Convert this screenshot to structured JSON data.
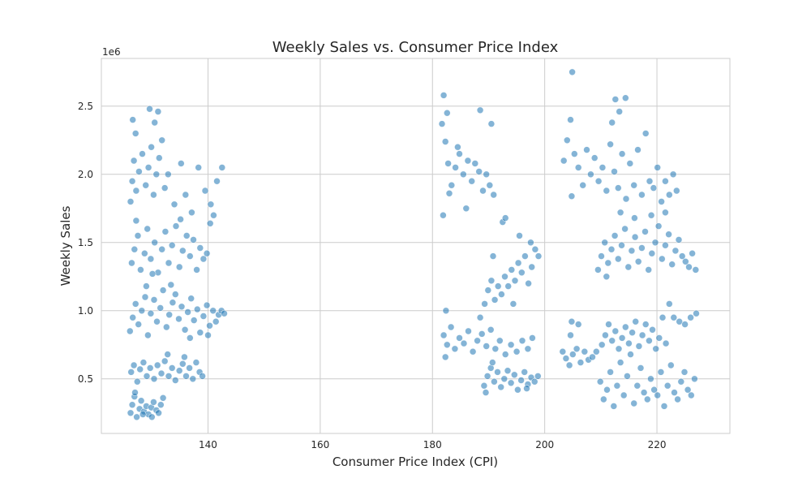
{
  "chart_data": {
    "type": "scatter",
    "title": "Weekly Sales vs. Consumer Price Index",
    "xlabel": "Consumer Price Index (CPI)",
    "ylabel": "Weekly Sales",
    "y_offset_label": "1e6",
    "xlim": [
      121,
      233
    ],
    "ylim": [
      0.1,
      2.85
    ],
    "x_ticks": [
      140,
      160,
      180,
      200,
      220
    ],
    "x_tick_labels": [
      "140",
      "160",
      "180",
      "200",
      "220"
    ],
    "y_ticks": [
      0.5,
      1.0,
      1.5,
      2.0,
      2.5
    ],
    "y_tick_labels": [
      "0.5",
      "1.0",
      "1.5",
      "2.0",
      "2.5"
    ],
    "y_scale_note": "values in millions (x 1e6)",
    "grid": true,
    "marker_color": "#1f77b4",
    "marker_alpha": 0.55,
    "marker_edge_color": "#ffffff",
    "cluster_summary": [
      {
        "x_range": [
          126,
          132
        ],
        "y_range": [
          0.22,
          0.42
        ]
      },
      {
        "x_range": [
          126,
          139
        ],
        "y_range": [
          0.45,
          0.7
        ]
      },
      {
        "x_range": [
          126,
          143
        ],
        "y_range": [
          0.78,
          1.2
        ]
      },
      {
        "x_range": [
          126,
          141
        ],
        "y_range": [
          1.25,
          1.7
        ]
      },
      {
        "x_range": [
          126,
          143
        ],
        "y_range": [
          1.7,
          2.3
        ]
      },
      {
        "x_range": [
          181.5,
          192
        ],
        "y_range": [
          1.7,
          2.62
        ]
      },
      {
        "x_range": [
          182,
          198
        ],
        "y_range": [
          0.65,
          0.95
        ]
      },
      {
        "x_range": [
          189,
          199
        ],
        "y_range": [
          0.4,
          0.62
        ]
      },
      {
        "x_range": [
          189,
          199
        ],
        "y_range": [
          1.0,
          1.5
        ]
      },
      {
        "x_range": [
          203,
          227
        ],
        "y_range": [
          0.28,
          1.05
        ]
      },
      {
        "x_range": [
          209,
          227
        ],
        "y_range": [
          1.22,
          1.75
        ]
      },
      {
        "x_range": [
          203,
          224
        ],
        "y_range": [
          1.75,
          2.55
        ]
      }
    ],
    "points": [
      [
        126.2,
        0.25
      ],
      [
        126.5,
        0.31
      ],
      [
        126.9,
        0.37
      ],
      [
        127.3,
        0.22
      ],
      [
        127.8,
        0.28
      ],
      [
        128.1,
        0.34
      ],
      [
        128.6,
        0.26
      ],
      [
        129.0,
        0.3
      ],
      [
        129.4,
        0.24
      ],
      [
        129.9,
        0.29
      ],
      [
        130.3,
        0.33
      ],
      [
        130.8,
        0.27
      ],
      [
        131.2,
        0.25
      ],
      [
        131.6,
        0.31
      ],
      [
        132.0,
        0.36
      ],
      [
        127.0,
        0.4
      ],
      [
        128.4,
        0.24
      ],
      [
        130.0,
        0.22
      ],
      [
        126.3,
        0.55
      ],
      [
        126.8,
        0.6
      ],
      [
        127.4,
        0.48
      ],
      [
        127.9,
        0.57
      ],
      [
        128.5,
        0.62
      ],
      [
        129.1,
        0.52
      ],
      [
        129.7,
        0.58
      ],
      [
        130.4,
        0.5
      ],
      [
        131.0,
        0.6
      ],
      [
        131.7,
        0.54
      ],
      [
        132.3,
        0.63
      ],
      [
        133.0,
        0.52
      ],
      [
        133.6,
        0.58
      ],
      [
        134.2,
        0.49
      ],
      [
        134.9,
        0.56
      ],
      [
        135.5,
        0.61
      ],
      [
        136.1,
        0.52
      ],
      [
        136.7,
        0.58
      ],
      [
        137.3,
        0.5
      ],
      [
        137.9,
        0.62
      ],
      [
        138.5,
        0.55
      ],
      [
        139.0,
        0.52
      ],
      [
        132.8,
        0.68
      ],
      [
        135.8,
        0.66
      ],
      [
        126.1,
        0.85
      ],
      [
        126.6,
        0.95
      ],
      [
        127.1,
        1.05
      ],
      [
        127.6,
        0.9
      ],
      [
        128.2,
        1.0
      ],
      [
        128.8,
        1.1
      ],
      [
        129.3,
        0.82
      ],
      [
        129.8,
        0.98
      ],
      [
        130.4,
        1.08
      ],
      [
        130.9,
        0.92
      ],
      [
        131.5,
        1.02
      ],
      [
        132.0,
        1.15
      ],
      [
        132.6,
        0.88
      ],
      [
        133.1,
        0.97
      ],
      [
        133.7,
        1.06
      ],
      [
        134.2,
        1.12
      ],
      [
        134.8,
        0.94
      ],
      [
        135.3,
        1.03
      ],
      [
        135.9,
        0.86
      ],
      [
        136.4,
        0.99
      ],
      [
        137.0,
        1.09
      ],
      [
        137.5,
        0.93
      ],
      [
        138.1,
        1.01
      ],
      [
        138.6,
        0.84
      ],
      [
        139.2,
        0.96
      ],
      [
        139.8,
        1.04
      ],
      [
        140.3,
        0.89
      ],
      [
        140.9,
        1.0
      ],
      [
        141.4,
        0.92
      ],
      [
        141.9,
        0.97
      ],
      [
        142.4,
        1.0
      ],
      [
        142.9,
        0.98
      ],
      [
        129.0,
        1.18
      ],
      [
        133.4,
        1.19
      ],
      [
        136.8,
        0.8
      ],
      [
        140.0,
        0.82
      ],
      [
        126.4,
        1.35
      ],
      [
        126.9,
        1.45
      ],
      [
        127.5,
        1.55
      ],
      [
        128.0,
        1.3
      ],
      [
        128.7,
        1.42
      ],
      [
        129.2,
        1.6
      ],
      [
        129.8,
        1.38
      ],
      [
        130.5,
        1.5
      ],
      [
        131.1,
        1.28
      ],
      [
        131.8,
        1.45
      ],
      [
        132.4,
        1.58
      ],
      [
        133.0,
        1.35
      ],
      [
        133.6,
        1.48
      ],
      [
        134.3,
        1.62
      ],
      [
        134.9,
        1.32
      ],
      [
        135.5,
        1.44
      ],
      [
        136.2,
        1.55
      ],
      [
        136.8,
        1.4
      ],
      [
        137.4,
        1.52
      ],
      [
        138.0,
        1.3
      ],
      [
        138.6,
        1.46
      ],
      [
        139.2,
        1.38
      ],
      [
        139.8,
        1.42
      ],
      [
        140.4,
        1.64
      ],
      [
        141.0,
        1.7
      ],
      [
        127.2,
        1.66
      ],
      [
        130.1,
        1.27
      ],
      [
        135.1,
        1.67
      ],
      [
        126.2,
        1.8
      ],
      [
        126.5,
        1.95
      ],
      [
        126.8,
        2.1
      ],
      [
        127.2,
        1.88
      ],
      [
        127.7,
        2.02
      ],
      [
        128.3,
        2.15
      ],
      [
        128.9,
        1.92
      ],
      [
        129.4,
        2.05
      ],
      [
        129.9,
        2.2
      ],
      [
        130.3,
        1.85
      ],
      [
        130.8,
        2.0
      ],
      [
        131.3,
        2.12
      ],
      [
        131.8,
        2.25
      ],
      [
        132.3,
        1.9
      ],
      [
        132.9,
        2.0
      ],
      [
        134.0,
        1.78
      ],
      [
        135.2,
        2.08
      ],
      [
        136.0,
        1.85
      ],
      [
        137.1,
        1.72
      ],
      [
        138.3,
        2.05
      ],
      [
        139.5,
        1.88
      ],
      [
        140.5,
        1.78
      ],
      [
        141.6,
        1.95
      ],
      [
        142.5,
        2.05
      ],
      [
        126.6,
        2.4
      ],
      [
        127.1,
        2.3
      ],
      [
        129.6,
        2.48
      ],
      [
        130.5,
        2.38
      ],
      [
        131.1,
        2.46
      ],
      [
        181.7,
        2.37
      ],
      [
        182.3,
        2.24
      ],
      [
        182.8,
        2.08
      ],
      [
        183.4,
        1.92
      ],
      [
        184.1,
        2.05
      ],
      [
        184.8,
        2.15
      ],
      [
        185.5,
        2.0
      ],
      [
        186.3,
        2.1
      ],
      [
        187.0,
        1.95
      ],
      [
        187.6,
        2.08
      ],
      [
        188.3,
        2.02
      ],
      [
        189.0,
        1.88
      ],
      [
        189.6,
        2.0
      ],
      [
        190.2,
        1.92
      ],
      [
        190.9,
        1.85
      ],
      [
        182.0,
        2.58
      ],
      [
        182.6,
        2.45
      ],
      [
        183.0,
        1.86
      ],
      [
        186.0,
        1.75
      ],
      [
        188.5,
        2.47
      ],
      [
        190.5,
        2.37
      ],
      [
        181.9,
        1.7
      ],
      [
        184.5,
        2.2
      ],
      [
        182.0,
        0.82
      ],
      [
        182.6,
        0.75
      ],
      [
        183.3,
        0.88
      ],
      [
        184.0,
        0.72
      ],
      [
        184.8,
        0.8
      ],
      [
        185.6,
        0.76
      ],
      [
        186.4,
        0.85
      ],
      [
        187.2,
        0.7
      ],
      [
        188.0,
        0.78
      ],
      [
        188.8,
        0.83
      ],
      [
        189.6,
        0.74
      ],
      [
        190.4,
        0.86
      ],
      [
        191.2,
        0.72
      ],
      [
        192.0,
        0.78
      ],
      [
        193.0,
        0.68
      ],
      [
        194.0,
        0.75
      ],
      [
        195.0,
        0.7
      ],
      [
        196.0,
        0.78
      ],
      [
        197.0,
        0.72
      ],
      [
        197.8,
        0.8
      ],
      [
        182.4,
        1.0
      ],
      [
        188.5,
        0.95
      ],
      [
        182.3,
        0.66
      ],
      [
        189.2,
        0.45
      ],
      [
        189.8,
        0.52
      ],
      [
        190.4,
        0.58
      ],
      [
        191.0,
        0.48
      ],
      [
        191.6,
        0.55
      ],
      [
        192.2,
        0.44
      ],
      [
        192.8,
        0.5
      ],
      [
        193.4,
        0.56
      ],
      [
        194.0,
        0.47
      ],
      [
        194.6,
        0.53
      ],
      [
        195.2,
        0.42
      ],
      [
        195.8,
        0.49
      ],
      [
        196.4,
        0.55
      ],
      [
        197.0,
        0.46
      ],
      [
        197.6,
        0.51
      ],
      [
        198.2,
        0.48
      ],
      [
        198.8,
        0.52
      ],
      [
        189.5,
        0.4
      ],
      [
        190.7,
        0.62
      ],
      [
        196.8,
        0.43
      ],
      [
        189.3,
        1.05
      ],
      [
        189.9,
        1.15
      ],
      [
        190.5,
        1.22
      ],
      [
        191.1,
        1.08
      ],
      [
        191.7,
        1.18
      ],
      [
        192.3,
        1.12
      ],
      [
        192.9,
        1.25
      ],
      [
        193.5,
        1.18
      ],
      [
        194.1,
        1.3
      ],
      [
        194.7,
        1.22
      ],
      [
        195.3,
        1.35
      ],
      [
        195.9,
        1.28
      ],
      [
        196.5,
        1.4
      ],
      [
        197.1,
        1.2
      ],
      [
        197.7,
        1.32
      ],
      [
        198.3,
        1.45
      ],
      [
        198.9,
        1.4
      ],
      [
        190.8,
        1.4
      ],
      [
        192.5,
        1.65
      ],
      [
        193.0,
        1.68
      ],
      [
        195.5,
        1.55
      ],
      [
        197.5,
        1.5
      ],
      [
        194.4,
        1.05
      ],
      [
        203.2,
        0.7
      ],
      [
        203.8,
        0.65
      ],
      [
        204.4,
        0.6
      ],
      [
        205.0,
        0.68
      ],
      [
        205.7,
        0.72
      ],
      [
        206.4,
        0.62
      ],
      [
        207.1,
        0.7
      ],
      [
        207.8,
        0.64
      ],
      [
        208.5,
        0.66
      ],
      [
        209.2,
        0.7
      ],
      [
        209.9,
        0.48
      ],
      [
        210.5,
        0.35
      ],
      [
        211.1,
        0.42
      ],
      [
        211.7,
        0.55
      ],
      [
        212.3,
        0.3
      ],
      [
        212.9,
        0.45
      ],
      [
        213.5,
        0.62
      ],
      [
        214.1,
        0.38
      ],
      [
        214.7,
        0.52
      ],
      [
        215.3,
        0.68
      ],
      [
        215.9,
        0.32
      ],
      [
        216.5,
        0.45
      ],
      [
        217.1,
        0.58
      ],
      [
        217.7,
        0.4
      ],
      [
        218.3,
        0.35
      ],
      [
        218.9,
        0.5
      ],
      [
        219.5,
        0.42
      ],
      [
        220.1,
        0.38
      ],
      [
        220.7,
        0.55
      ],
      [
        221.3,
        0.3
      ],
      [
        221.9,
        0.45
      ],
      [
        222.5,
        0.6
      ],
      [
        223.1,
        0.4
      ],
      [
        223.7,
        0.35
      ],
      [
        224.3,
        0.48
      ],
      [
        224.9,
        0.55
      ],
      [
        225.5,
        0.42
      ],
      [
        226.1,
        0.38
      ],
      [
        226.7,
        0.5
      ],
      [
        210.2,
        0.75
      ],
      [
        210.8,
        0.82
      ],
      [
        211.4,
        0.9
      ],
      [
        212.0,
        0.78
      ],
      [
        212.6,
        0.85
      ],
      [
        213.2,
        0.72
      ],
      [
        213.8,
        0.8
      ],
      [
        214.4,
        0.88
      ],
      [
        215.0,
        0.76
      ],
      [
        215.6,
        0.84
      ],
      [
        216.2,
        0.92
      ],
      [
        216.8,
        0.74
      ],
      [
        217.4,
        0.82
      ],
      [
        218.0,
        0.9
      ],
      [
        218.6,
        0.78
      ],
      [
        219.2,
        0.86
      ],
      [
        219.8,
        0.72
      ],
      [
        220.4,
        0.8
      ],
      [
        221.0,
        0.95
      ],
      [
        221.6,
        0.76
      ],
      [
        222.2,
        1.05
      ],
      [
        223.0,
        0.95
      ],
      [
        224.0,
        0.92
      ],
      [
        225.0,
        0.9
      ],
      [
        226.0,
        0.95
      ],
      [
        227.0,
        0.98
      ],
      [
        204.8,
        0.92
      ],
      [
        204.6,
        0.82
      ],
      [
        206.0,
        0.9
      ],
      [
        209.5,
        1.3
      ],
      [
        210.1,
        1.4
      ],
      [
        210.7,
        1.5
      ],
      [
        211.3,
        1.35
      ],
      [
        211.9,
        1.45
      ],
      [
        212.5,
        1.55
      ],
      [
        213.1,
        1.38
      ],
      [
        213.7,
        1.48
      ],
      [
        214.3,
        1.6
      ],
      [
        214.9,
        1.32
      ],
      [
        215.5,
        1.44
      ],
      [
        216.1,
        1.54
      ],
      [
        216.7,
        1.36
      ],
      [
        217.3,
        1.46
      ],
      [
        217.9,
        1.58
      ],
      [
        218.5,
        1.3
      ],
      [
        219.1,
        1.42
      ],
      [
        219.7,
        1.5
      ],
      [
        220.3,
        1.62
      ],
      [
        220.9,
        1.38
      ],
      [
        221.5,
        1.48
      ],
      [
        222.1,
        1.56
      ],
      [
        222.7,
        1.34
      ],
      [
        223.3,
        1.44
      ],
      [
        223.9,
        1.52
      ],
      [
        224.5,
        1.4
      ],
      [
        225.1,
        1.36
      ],
      [
        225.7,
        1.32
      ],
      [
        226.3,
        1.42
      ],
      [
        226.9,
        1.3
      ],
      [
        211.0,
        1.25
      ],
      [
        213.5,
        1.72
      ],
      [
        216.0,
        1.68
      ],
      [
        219.0,
        1.7
      ],
      [
        221.5,
        1.72
      ],
      [
        203.4,
        2.1
      ],
      [
        204.0,
        2.25
      ],
      [
        204.6,
        2.4
      ],
      [
        205.3,
        2.15
      ],
      [
        206.0,
        2.05
      ],
      [
        206.8,
        1.92
      ],
      [
        207.5,
        2.18
      ],
      [
        208.2,
        2.0
      ],
      [
        208.9,
        2.12
      ],
      [
        209.6,
        1.95
      ],
      [
        210.3,
        2.05
      ],
      [
        211.0,
        1.88
      ],
      [
        211.7,
        2.22
      ],
      [
        212.4,
        2.02
      ],
      [
        213.1,
        1.9
      ],
      [
        213.8,
        2.15
      ],
      [
        214.5,
        1.82
      ],
      [
        215.2,
        2.08
      ],
      [
        215.9,
        1.92
      ],
      [
        216.6,
        2.18
      ],
      [
        217.3,
        1.85
      ],
      [
        218.0,
        2.3
      ],
      [
        218.7,
        1.95
      ],
      [
        219.4,
        1.9
      ],
      [
        220.1,
        2.05
      ],
      [
        220.8,
        1.8
      ],
      [
        221.5,
        1.95
      ],
      [
        222.2,
        1.85
      ],
      [
        222.9,
        2.0
      ],
      [
        223.5,
        1.88
      ],
      [
        204.9,
        2.75
      ],
      [
        212.0,
        2.38
      ],
      [
        212.6,
        2.55
      ],
      [
        214.4,
        2.56
      ],
      [
        204.8,
        1.84
      ],
      [
        213.3,
        2.46
      ]
    ]
  }
}
